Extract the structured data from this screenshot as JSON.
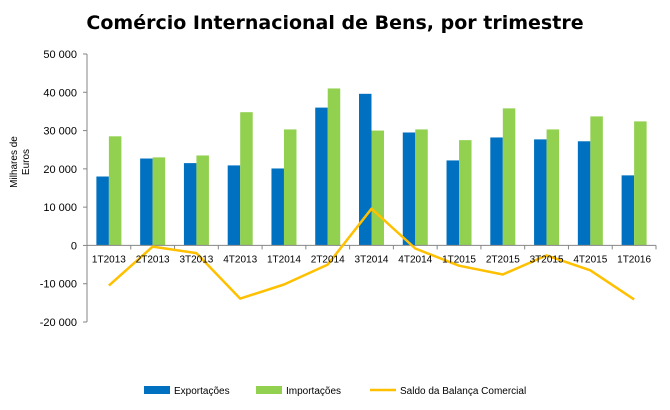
{
  "chart_data": {
    "type": "bar",
    "title": "Comércio Internacional de Bens, por trimestre",
    "ylabel": "Milhares de Euros",
    "xlabel": "",
    "ylim": [
      -20000,
      50000
    ],
    "yticks": [
      50000,
      40000,
      30000,
      20000,
      10000,
      0,
      -10000,
      -20000
    ],
    "ytick_labels": [
      "50 000",
      "40 000",
      "30 000",
      "20 000",
      "10 000",
      "0",
      "-10 000",
      "-20 000"
    ],
    "grid": false,
    "legend_position": "bottom",
    "categories": [
      "1T2013",
      "2T2013",
      "3T2013",
      "4T2013",
      "1T2014",
      "2T2014",
      "3T2014",
      "4T2014",
      "1T2015",
      "2T2015",
      "3T2015",
      "4T2015",
      "1T2016"
    ],
    "series": [
      {
        "name": "Exportações",
        "type": "bar",
        "color": "#0070c0",
        "values": [
          18000,
          22700,
          21500,
          20900,
          20100,
          36000,
          39600,
          29500,
          22200,
          28200,
          27700,
          27200,
          18300
        ]
      },
      {
        "name": "Importações",
        "type": "bar",
        "color": "#92d050",
        "values": [
          28500,
          23000,
          23500,
          34800,
          30300,
          41000,
          30000,
          30300,
          27500,
          35800,
          30300,
          33700,
          32400
        ]
      },
      {
        "name": "Saldo da Balança Comercial",
        "type": "line",
        "color": "#ffc000",
        "values": [
          -10500,
          -300,
          -2000,
          -13900,
          -10200,
          -5000,
          9600,
          -800,
          -5300,
          -7600,
          -2600,
          -6500,
          -14100
        ]
      }
    ]
  }
}
